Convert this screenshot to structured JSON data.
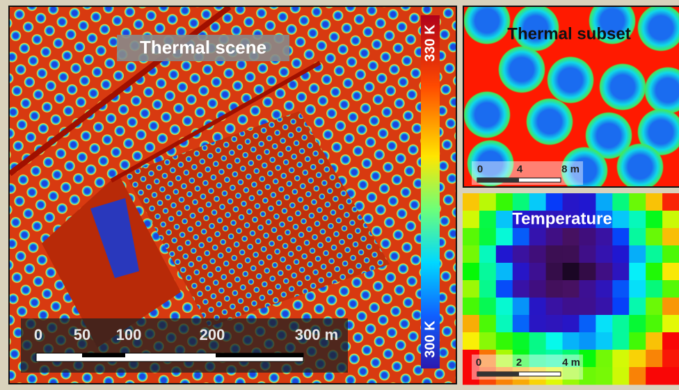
{
  "panels": {
    "scene": {
      "title": "Thermal scene",
      "colorbar": {
        "max": "330 K",
        "min": "300 K"
      },
      "scale": [
        "0",
        "50",
        "100",
        "200",
        "300 m"
      ]
    },
    "subset": {
      "title": "Thermal subset",
      "scale": [
        "0",
        "4",
        "8 m"
      ]
    },
    "temperature": {
      "title": "Temperature",
      "scale": [
        "0",
        "2",
        "4 m"
      ]
    }
  }
}
